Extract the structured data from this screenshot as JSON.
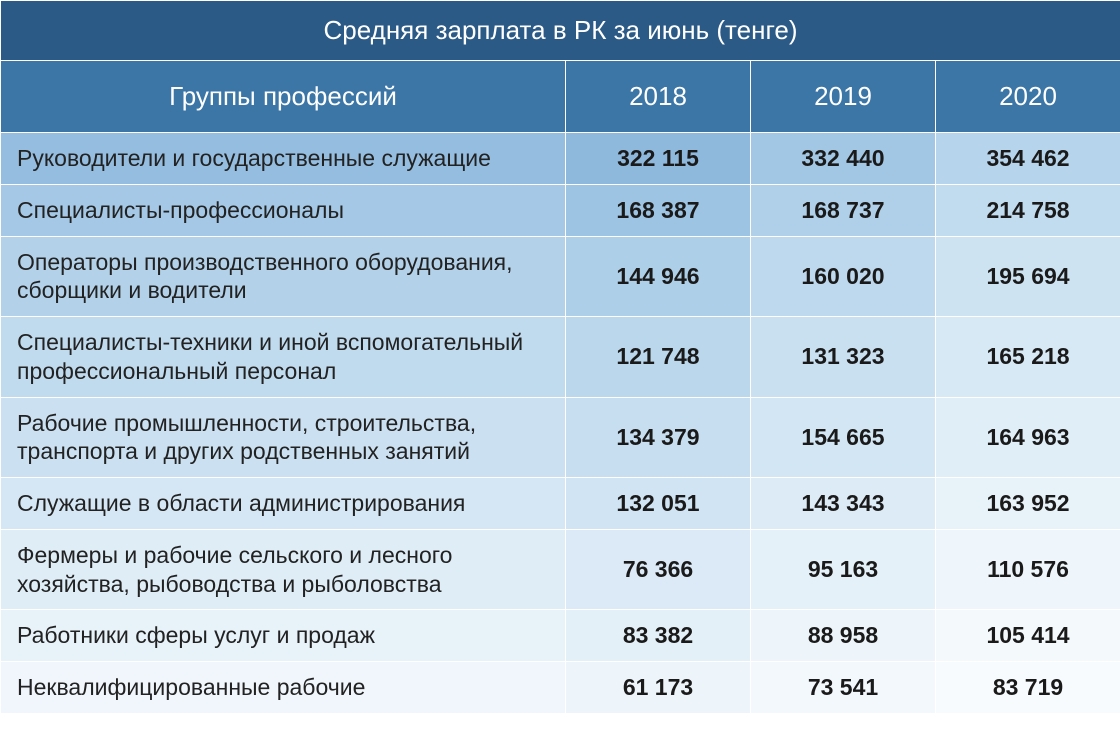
{
  "title": "Средняя зарплата в РК за июнь (тенге)",
  "header_label": "Группы профессий",
  "years": [
    "2018",
    "2019",
    "2020"
  ],
  "rows": [
    {
      "label": "Руководители и государственные служащие",
      "values": [
        "322 115",
        "332 440",
        "354 462"
      ]
    },
    {
      "label": "Специалисты-профессионалы",
      "values": [
        "168 387",
        "168 737",
        "214 758"
      ]
    },
    {
      "label": "Операторы производственного оборудования, сборщики и водители",
      "values": [
        "144 946",
        "160 020",
        "195 694"
      ]
    },
    {
      "label": "Специалисты-техники и иной вспомогательный профессиональный персонал",
      "values": [
        "121 748",
        "131 323",
        "165 218"
      ]
    },
    {
      "label": "Рабочие промышленности, строительства, транспорта и других родственных занятий",
      "values": [
        "134 379",
        "154 665",
        "164 963"
      ]
    },
    {
      "label": "Служащие в области администрирования",
      "values": [
        "132 051",
        "143 343",
        "163 952"
      ]
    },
    {
      "label": "Фермеры и рабочие сельского и лесного хозяйства, рыбоводства и рыболовства",
      "values": [
        "76 366",
        "95 163",
        "110 576"
      ]
    },
    {
      "label": "Работники сферы услуг и продаж",
      "values": [
        "83 382",
        "88 958",
        "105 414"
      ]
    },
    {
      "label": "Неквалифицированные рабочие",
      "values": [
        "61 173",
        "73 541",
        "83 719"
      ]
    }
  ],
  "style": {
    "title_bg": "#2b5a86",
    "title_color": "#ffffff",
    "header_bg": "#3b76a6",
    "header_color": "#ffffff",
    "border_color": "#ffffff",
    "label_text_color": "#222222",
    "value_text_color": "#1a1a1a",
    "value_font_weight": "bold",
    "row_heights": {
      "title": 54,
      "header": 66,
      "single_line": 58,
      "double_line": 70
    },
    "column_gradient": {
      "label": [
        "#94bde0",
        "#a4c8e5",
        "#b3d2ea",
        "#c0daee",
        "#cbe0f1",
        "#d5e7f4",
        "#dfedf7",
        "#e8f2f9",
        "#f0f6fb"
      ],
      "year0": [
        "#8eb9dd",
        "#9ec4e3",
        "#aecfe8",
        "#bbd7ec",
        "#c6def0",
        "#d1e4f3",
        "#dbeaf6",
        "#e4f0f8",
        "#edf5fa"
      ],
      "year1": [
        "#a2c7e4",
        "#b0d0e9",
        "#bed9ed",
        "#c9e0f1",
        "#d3e6f3",
        "#ddebf6",
        "#e5f1f8",
        "#edf5fa",
        "#f3f8fc"
      ],
      "year2": [
        "#b6d4eb",
        "#c2dcef",
        "#cde3f2",
        "#d7e9f5",
        "#e0eef7",
        "#e8f2f9",
        "#eff6fb",
        "#f4f9fc",
        "#f8fbfd"
      ]
    },
    "font_family": "Arial, Helvetica, sans-serif",
    "title_fontsize": 26,
    "header_fontsize": 26,
    "body_fontsize": 23
  }
}
